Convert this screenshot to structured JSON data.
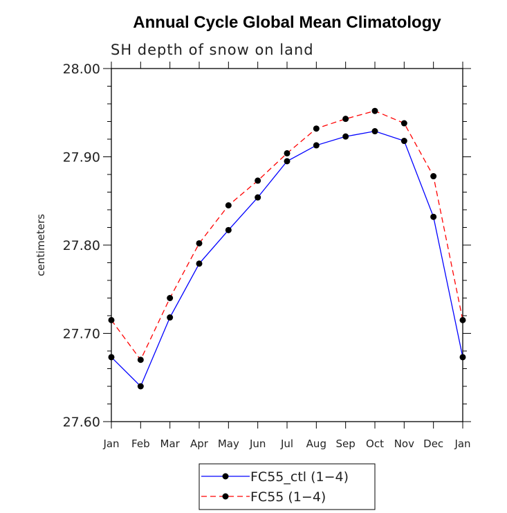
{
  "chart_data": {
    "type": "line",
    "title": "Annual Cycle Global Mean Climatology",
    "subtitle": "SH depth of snow on land",
    "ylabel": "centimeters",
    "xlabel": "",
    "ylim": [
      27.6,
      28.0
    ],
    "yticks": [
      "27.60",
      "27.70",
      "27.80",
      "27.90",
      "28.00"
    ],
    "categories": [
      "Jan",
      "Feb",
      "Mar",
      "Apr",
      "May",
      "Jun",
      "Jul",
      "Aug",
      "Sep",
      "Oct",
      "Nov",
      "Dec",
      "Jan"
    ],
    "grid": false,
    "legend_position": "bottom",
    "series": [
      {
        "name": "FC55_ctl (1−4)",
        "color": "#0000ff",
        "dash": "solid",
        "values": [
          27.673,
          27.64,
          27.718,
          27.779,
          27.817,
          27.854,
          27.895,
          27.913,
          27.923,
          27.929,
          27.918,
          27.832,
          27.673
        ]
      },
      {
        "name": "FC55 (1−4)",
        "color": "#ff0000",
        "dash": "dashed",
        "values": [
          27.715,
          27.67,
          27.74,
          27.802,
          27.845,
          27.873,
          27.904,
          27.932,
          27.943,
          27.952,
          27.938,
          27.878,
          27.715
        ]
      }
    ]
  }
}
